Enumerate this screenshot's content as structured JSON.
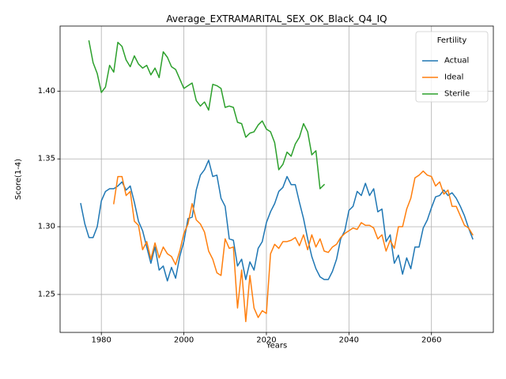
{
  "chart_data": {
    "type": "line",
    "title": "Average_EXTRAMARITAL_SEX_OK_Black_Q4_IQ",
    "xlabel": "Years",
    "ylabel": "Score(1-4)",
    "xlim": [
      1970.0,
      2075.0
    ],
    "ylim": [
      1.222,
      1.448
    ],
    "xticks": [
      1980,
      2000,
      2020,
      2040,
      2060
    ],
    "yticks": [
      1.25,
      1.3,
      1.35,
      1.4
    ],
    "ytick_labels": [
      "1.25",
      "1.30",
      "1.35",
      "1.40"
    ],
    "grid": true,
    "legend": {
      "title": "Fertility",
      "position": "top-right"
    },
    "series": [
      {
        "name": "Actual",
        "color": "#1f77b4",
        "x": [
          1975,
          1976,
          1977,
          1978,
          1979,
          1980,
          1981,
          1982,
          1983,
          1984,
          1985,
          1986,
          1987,
          1988,
          1989,
          1990,
          1991,
          1992,
          1993,
          1994,
          1995,
          1996,
          1997,
          1998,
          1999,
          2000,
          2001,
          2002,
          2003,
          2004,
          2005,
          2006,
          2007,
          2008,
          2009,
          2010,
          2011,
          2012,
          2013,
          2014,
          2015,
          2016,
          2017,
          2018,
          2019,
          2020,
          2021,
          2022,
          2023,
          2024,
          2025,
          2026,
          2027,
          2028,
          2029,
          2030,
          2031,
          2032,
          2033,
          2034,
          2035,
          2036,
          2037,
          2038,
          2039,
          2040,
          2041,
          2042,
          2043,
          2044,
          2045,
          2046,
          2047,
          2048,
          2049,
          2050,
          2051,
          2052,
          2053,
          2054,
          2055,
          2056,
          2057,
          2058,
          2059,
          2060,
          2061,
          2062,
          2063,
          2064,
          2065,
          2066,
          2067,
          2068,
          2069,
          2070
        ],
        "values": [
          1.317,
          1.302,
          1.292,
          1.292,
          1.3,
          1.319,
          1.326,
          1.328,
          1.328,
          1.33,
          1.333,
          1.327,
          1.33,
          1.318,
          1.304,
          1.297,
          1.285,
          1.273,
          1.285,
          1.268,
          1.271,
          1.26,
          1.27,
          1.262,
          1.278,
          1.289,
          1.306,
          1.307,
          1.327,
          1.338,
          1.342,
          1.349,
          1.337,
          1.338,
          1.321,
          1.315,
          1.291,
          1.29,
          1.271,
          1.276,
          1.261,
          1.274,
          1.268,
          1.284,
          1.289,
          1.303,
          1.311,
          1.317,
          1.326,
          1.329,
          1.337,
          1.331,
          1.331,
          1.318,
          1.306,
          1.291,
          1.278,
          1.269,
          1.263,
          1.261,
          1.261,
          1.267,
          1.276,
          1.291,
          1.297,
          1.312,
          1.315,
          1.326,
          1.323,
          1.332,
          1.323,
          1.328,
          1.311,
          1.313,
          1.289,
          1.294,
          1.273,
          1.279,
          1.265,
          1.277,
          1.269,
          1.285,
          1.285,
          1.299,
          1.305,
          1.314,
          1.322,
          1.323,
          1.327,
          1.323,
          1.325,
          1.321,
          1.315,
          1.308,
          1.299,
          1.291
        ]
      },
      {
        "name": "Ideal",
        "color": "#ff7f0e",
        "x": [
          1983,
          1984,
          1985,
          1986,
          1987,
          1988,
          1989,
          1990,
          1991,
          1992,
          1993,
          1994,
          1995,
          1996,
          1997,
          1998,
          1999,
          2000,
          2001,
          2002,
          2003,
          2004,
          2005,
          2006,
          2007,
          2008,
          2009,
          2010,
          2011,
          2012,
          2013,
          2014,
          2015,
          2016,
          2017,
          2018,
          2019,
          2020,
          2021,
          2022,
          2023,
          2024,
          2025,
          2026,
          2027,
          2028,
          2029,
          2030,
          2031,
          2032,
          2033,
          2034,
          2035,
          2036,
          2037,
          2038,
          2039,
          2040,
          2041,
          2042,
          2043,
          2044,
          2045,
          2046,
          2047,
          2048,
          2049,
          2050,
          2051,
          2052,
          2053,
          2054,
          2055,
          2056,
          2057,
          2058,
          2059,
          2060,
          2061,
          2062,
          2063,
          2064,
          2065,
          2066,
          2067,
          2068,
          2069,
          2070
        ],
        "values": [
          1.317,
          1.337,
          1.337,
          1.323,
          1.326,
          1.304,
          1.301,
          1.283,
          1.289,
          1.276,
          1.288,
          1.277,
          1.285,
          1.28,
          1.278,
          1.272,
          1.282,
          1.295,
          1.302,
          1.317,
          1.305,
          1.302,
          1.296,
          1.282,
          1.276,
          1.266,
          1.264,
          1.291,
          1.284,
          1.285,
          1.24,
          1.268,
          1.23,
          1.264,
          1.24,
          1.233,
          1.238,
          1.236,
          1.28,
          1.287,
          1.284,
          1.289,
          1.289,
          1.29,
          1.292,
          1.286,
          1.294,
          1.283,
          1.294,
          1.285,
          1.291,
          1.282,
          1.281,
          1.285,
          1.287,
          1.292,
          1.295,
          1.297,
          1.299,
          1.298,
          1.303,
          1.301,
          1.301,
          1.299,
          1.291,
          1.294,
          1.282,
          1.29,
          1.284,
          1.3,
          1.3,
          1.313,
          1.321,
          1.336,
          1.338,
          1.341,
          1.338,
          1.337,
          1.33,
          1.333,
          1.324,
          1.327,
          1.315,
          1.315,
          1.308,
          1.301,
          1.299,
          1.294
        ]
      },
      {
        "name": "Sterile",
        "color": "#2ca02c",
        "x": [
          1977,
          1978,
          1979,
          1980,
          1981,
          1982,
          1983,
          1984,
          1985,
          1986,
          1987,
          1988,
          1989,
          1990,
          1991,
          1992,
          1993,
          1994,
          1995,
          1996,
          1997,
          1998,
          1999,
          2000,
          2001,
          2002,
          2003,
          2004,
          2005,
          2006,
          2007,
          2008,
          2009,
          2010,
          2011,
          2012,
          2013,
          2014,
          2015,
          2016,
          2017,
          2018,
          2019,
          2020,
          2021,
          2022,
          2023,
          2024,
          2025,
          2026,
          2027,
          2028,
          2029,
          2030,
          2031,
          2032,
          2033,
          2034
        ],
        "values": [
          1.437,
          1.421,
          1.413,
          1.399,
          1.403,
          1.419,
          1.414,
          1.436,
          1.433,
          1.423,
          1.418,
          1.426,
          1.42,
          1.417,
          1.419,
          1.412,
          1.417,
          1.41,
          1.429,
          1.425,
          1.418,
          1.416,
          1.409,
          1.402,
          1.404,
          1.406,
          1.393,
          1.389,
          1.392,
          1.386,
          1.405,
          1.404,
          1.402,
          1.388,
          1.389,
          1.388,
          1.377,
          1.376,
          1.366,
          1.369,
          1.37,
          1.375,
          1.378,
          1.372,
          1.37,
          1.362,
          1.342,
          1.346,
          1.355,
          1.352,
          1.361,
          1.366,
          1.376,
          1.37,
          1.353,
          1.356,
          1.328,
          1.331
        ]
      }
    ]
  }
}
